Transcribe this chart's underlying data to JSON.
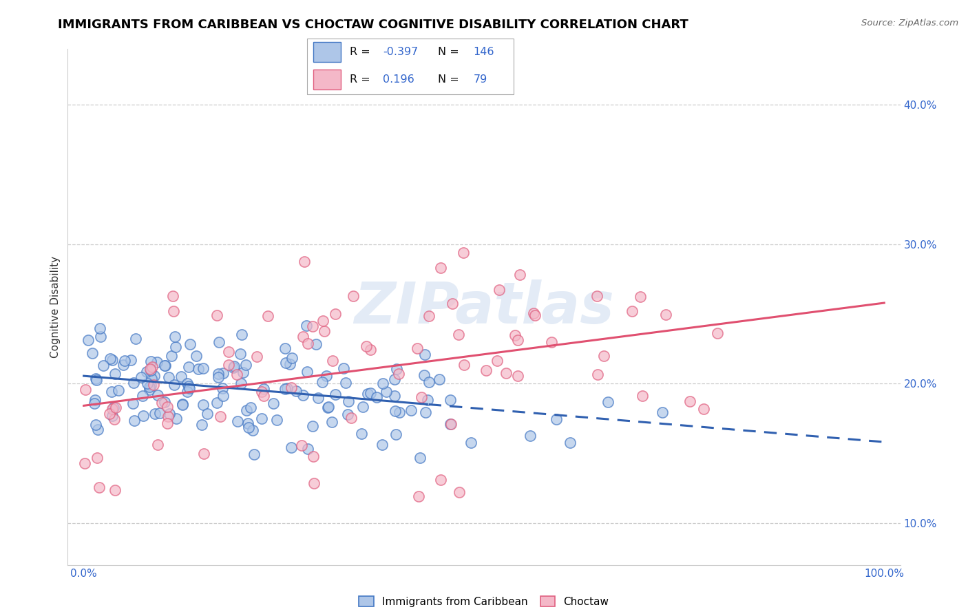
{
  "title": "IMMIGRANTS FROM CARIBBEAN VS CHOCTAW COGNITIVE DISABILITY CORRELATION CHART",
  "source_text": "Source: ZipAtlas.com",
  "ylabel": "Cognitive Disability",
  "legend_label_1": "Immigrants from Caribbean",
  "legend_label_2": "Choctaw",
  "R1": "-0.397",
  "N1": "146",
  "R2": "0.196",
  "N2": "79",
  "color_blue_face": "#aec6e8",
  "color_blue_edge": "#4478c4",
  "color_pink_face": "#f4b8c8",
  "color_pink_edge": "#e06080",
  "color_trend_blue": "#3060b0",
  "color_trend_pink": "#e05070",
  "watermark": "ZIPatlas",
  "xlim": [
    -0.02,
    1.02
  ],
  "ylim": [
    0.07,
    0.44
  ],
  "x_ticks": [
    0.0,
    1.0
  ],
  "x_tick_labels": [
    "0.0%",
    "100.0%"
  ],
  "y_ticks": [
    0.1,
    0.2,
    0.3,
    0.4
  ],
  "y_tick_labels": [
    "10.0%",
    "20.0%",
    "30.0%",
    "40.0%"
  ],
  "title_fontsize": 13,
  "axis_label_fontsize": 11,
  "tick_fontsize": 11,
  "watermark_text": "ZIPatlas"
}
